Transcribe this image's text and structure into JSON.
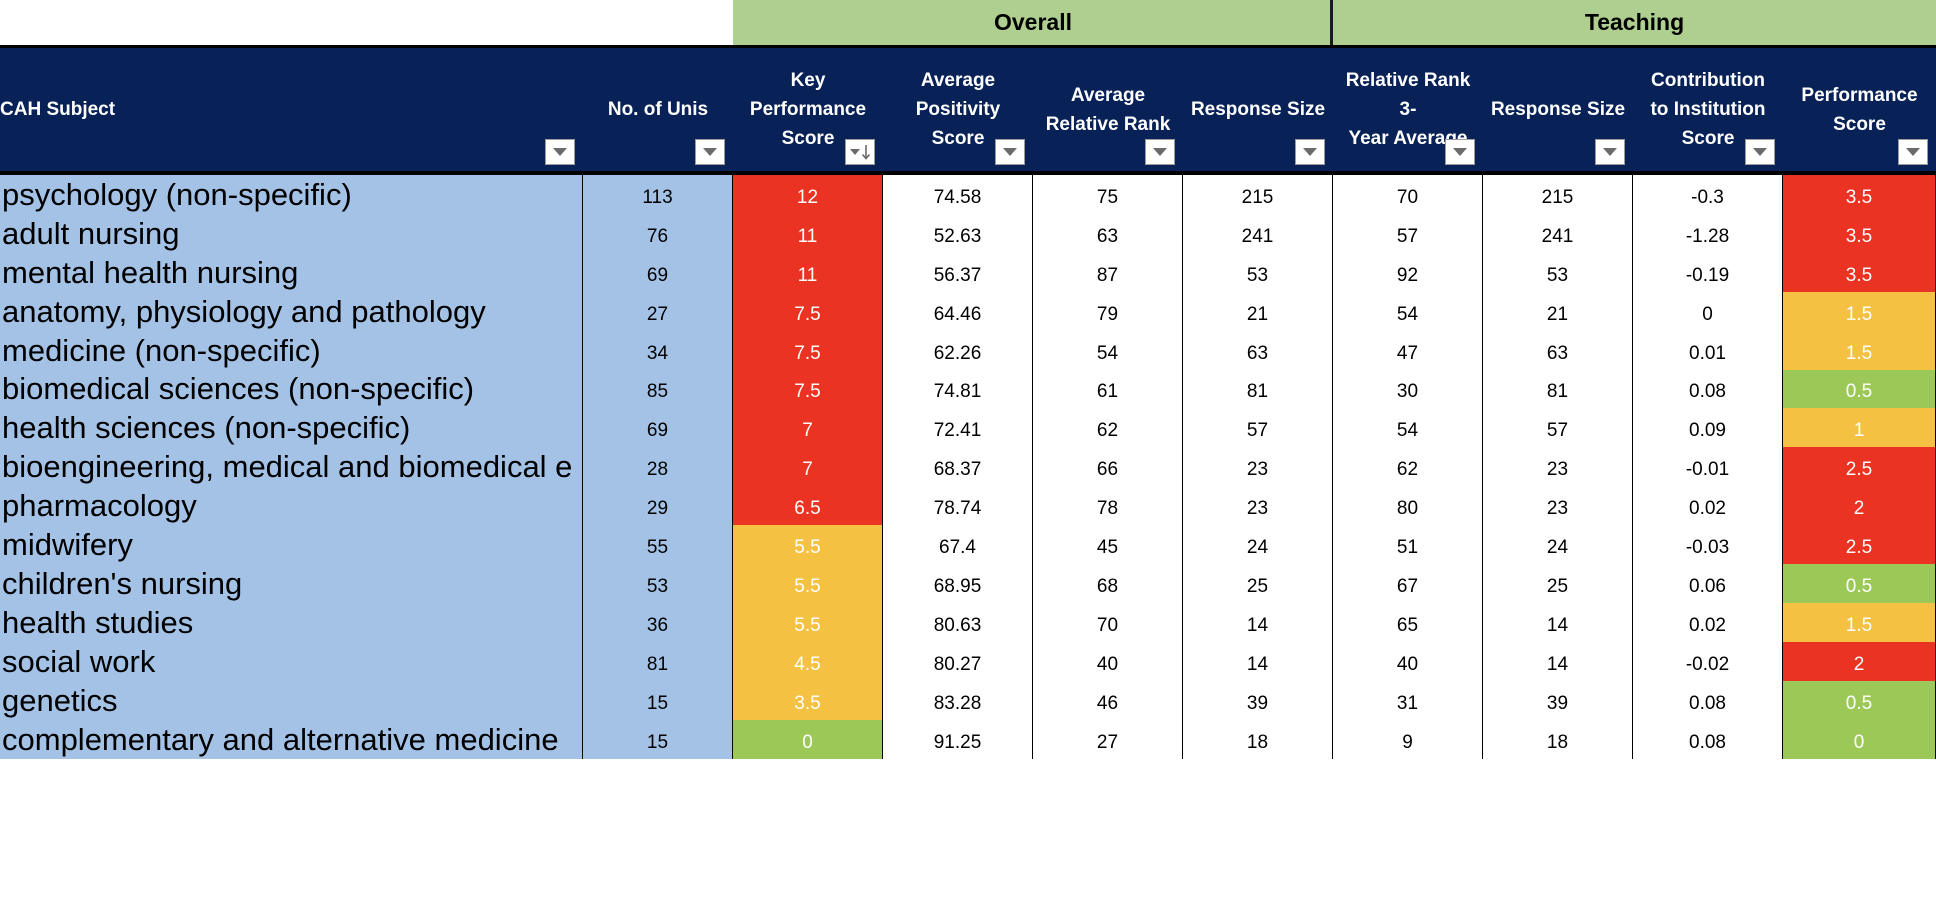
{
  "groups": {
    "overall": "Overall",
    "teaching": "Teaching"
  },
  "columns": [
    {
      "label": "CAH Subject"
    },
    {
      "label": "No. of Unis"
    },
    {
      "label": "Key\nPerformance\nScore",
      "sort": "descending"
    },
    {
      "label": "Average\nPositivity\nScore"
    },
    {
      "label": "Average\nRelative Rank"
    },
    {
      "label": "Response Size"
    },
    {
      "label": "Relative Rank 3-\nYear Average"
    },
    {
      "label": "Response Size"
    },
    {
      "label": "Contribution\nto Institution\nScore"
    },
    {
      "label": "Performance\nScore"
    }
  ],
  "colors": {
    "red": "#ea3323",
    "amber": "#f4c143",
    "green": "#9bc857",
    "subject_bg": "#a3c2e6",
    "header_bg": "#082157",
    "group_bg": "#aecf8f"
  },
  "rows": [
    {
      "subject": "psychology (non-specific)",
      "unis": "113",
      "kps": "12",
      "kps_color": "red",
      "aps": "74.58",
      "arr": "75",
      "resp": "215",
      "rr3": "70",
      "resp2": "215",
      "contrib": "-0.3",
      "perf": "3.5",
      "perf_color": "red"
    },
    {
      "subject": "adult nursing",
      "unis": "76",
      "kps": "11",
      "kps_color": "red",
      "aps": "52.63",
      "arr": "63",
      "resp": "241",
      "rr3": "57",
      "resp2": "241",
      "contrib": "-1.28",
      "perf": "3.5",
      "perf_color": "red"
    },
    {
      "subject": "mental health nursing",
      "unis": "69",
      "kps": "11",
      "kps_color": "red",
      "aps": "56.37",
      "arr": "87",
      "resp": "53",
      "rr3": "92",
      "resp2": "53",
      "contrib": "-0.19",
      "perf": "3.5",
      "perf_color": "red"
    },
    {
      "subject": "anatomy, physiology and pathology",
      "unis": "27",
      "kps": "7.5",
      "kps_color": "red",
      "aps": "64.46",
      "arr": "79",
      "resp": "21",
      "rr3": "54",
      "resp2": "21",
      "contrib": "0",
      "perf": "1.5",
      "perf_color": "amber"
    },
    {
      "subject": "medicine (non-specific)",
      "unis": "34",
      "kps": "7.5",
      "kps_color": "red",
      "aps": "62.26",
      "arr": "54",
      "resp": "63",
      "rr3": "47",
      "resp2": "63",
      "contrib": "0.01",
      "perf": "1.5",
      "perf_color": "amber"
    },
    {
      "subject": "biomedical sciences (non-specific)",
      "unis": "85",
      "kps": "7.5",
      "kps_color": "red",
      "aps": "74.81",
      "arr": "61",
      "resp": "81",
      "rr3": "30",
      "resp2": "81",
      "contrib": "0.08",
      "perf": "0.5",
      "perf_color": "green"
    },
    {
      "subject": "health sciences (non-specific)",
      "unis": "69",
      "kps": "7",
      "kps_color": "red",
      "aps": "72.41",
      "arr": "62",
      "resp": "57",
      "rr3": "54",
      "resp2": "57",
      "contrib": "0.09",
      "perf": "1",
      "perf_color": "amber"
    },
    {
      "subject": "bioengineering, medical and biomedical e",
      "unis": "28",
      "kps": "7",
      "kps_color": "red",
      "aps": "68.37",
      "arr": "66",
      "resp": "23",
      "rr3": "62",
      "resp2": "23",
      "contrib": "-0.01",
      "perf": "2.5",
      "perf_color": "red"
    },
    {
      "subject": "pharmacology",
      "unis": "29",
      "kps": "6.5",
      "kps_color": "red",
      "aps": "78.74",
      "arr": "78",
      "resp": "23",
      "rr3": "80",
      "resp2": "23",
      "contrib": "0.02",
      "perf": "2",
      "perf_color": "red"
    },
    {
      "subject": "midwifery",
      "unis": "55",
      "kps": "5.5",
      "kps_color": "amber",
      "aps": "67.4",
      "arr": "45",
      "resp": "24",
      "rr3": "51",
      "resp2": "24",
      "contrib": "-0.03",
      "perf": "2.5",
      "perf_color": "red"
    },
    {
      "subject": "children's nursing",
      "unis": "53",
      "kps": "5.5",
      "kps_color": "amber",
      "aps": "68.95",
      "arr": "68",
      "resp": "25",
      "rr3": "67",
      "resp2": "25",
      "contrib": "0.06",
      "perf": "0.5",
      "perf_color": "green"
    },
    {
      "subject": "health studies",
      "unis": "36",
      "kps": "5.5",
      "kps_color": "amber",
      "aps": "80.63",
      "arr": "70",
      "resp": "14",
      "rr3": "65",
      "resp2": "14",
      "contrib": "0.02",
      "perf": "1.5",
      "perf_color": "amber"
    },
    {
      "subject": "social work",
      "unis": "81",
      "kps": "4.5",
      "kps_color": "amber",
      "aps": "80.27",
      "arr": "40",
      "resp": "14",
      "rr3": "40",
      "resp2": "14",
      "contrib": "-0.02",
      "perf": "2",
      "perf_color": "red"
    },
    {
      "subject": "genetics",
      "unis": "15",
      "kps": "3.5",
      "kps_color": "amber",
      "aps": "83.28",
      "arr": "46",
      "resp": "39",
      "rr3": "31",
      "resp2": "39",
      "contrib": "0.08",
      "perf": "0.5",
      "perf_color": "green"
    },
    {
      "subject": "complementary and alternative medicine",
      "unis": "15",
      "kps": "0",
      "kps_color": "green",
      "aps": "91.25",
      "arr": "27",
      "resp": "18",
      "rr3": "9",
      "resp2": "18",
      "contrib": "0.08",
      "perf": "0",
      "perf_color": "green"
    }
  ]
}
